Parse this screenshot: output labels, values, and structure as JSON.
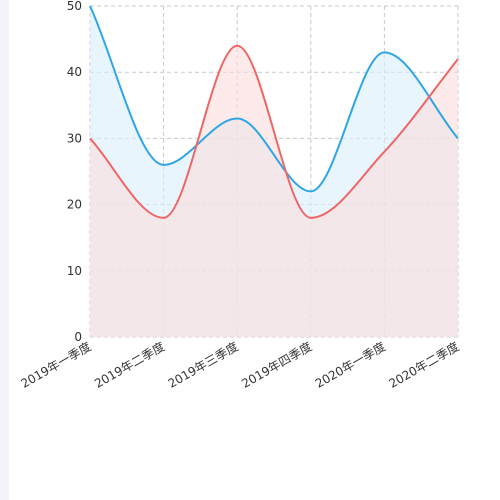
{
  "chart_data": {
    "type": "area",
    "categories": [
      "2019年一季度",
      "2019年二季度",
      "2019年三季度",
      "2019年四季度",
      "2020年一季度",
      "2020年二季度"
    ],
    "series": [
      {
        "values": [
          50,
          26,
          33,
          22,
          43,
          30
        ],
        "color": "#2ea6e6",
        "fill": "#d8eefb"
      },
      {
        "values": [
          30,
          18,
          44,
          18,
          28,
          42
        ],
        "color": "#ee6666",
        "fill": "#fbdede"
      }
    ],
    "yticks": [
      0,
      10,
      20,
      30,
      40,
      50
    ],
    "ylim": [
      0,
      50
    ],
    "grid": true,
    "title": "",
    "xlabel": "",
    "ylabel": ""
  }
}
